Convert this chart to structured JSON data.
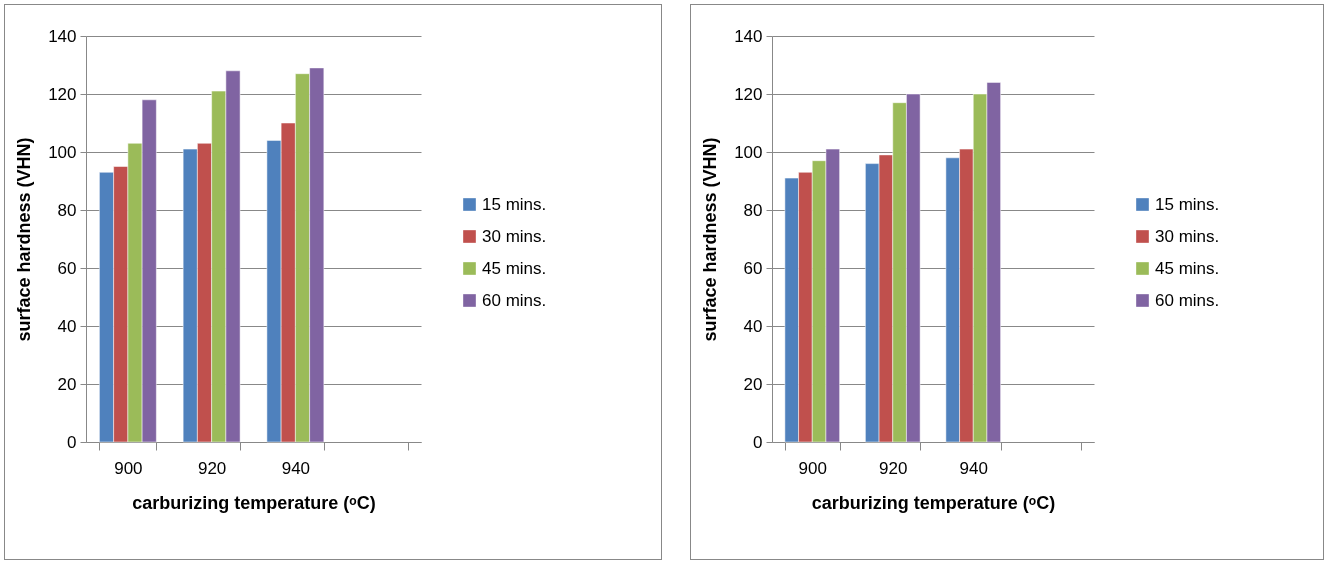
{
  "chart_data": [
    {
      "type": "bar",
      "xlabel": "carburizing temperature (ᵒC)",
      "ylabel": "surface hardness (VHN)",
      "categories": [
        "900",
        "920",
        "940",
        null
      ],
      "ylim": [
        0,
        140
      ],
      "yticks": [
        0,
        20,
        40,
        60,
        80,
        100,
        120,
        140
      ],
      "grid": "y",
      "legend": "right",
      "series": [
        {
          "name": "15 mins.",
          "color": "#4f81bd",
          "values": [
            93,
            101,
            104,
            null
          ]
        },
        {
          "name": "30 mins.",
          "color": "#c0504d",
          "values": [
            95,
            103,
            110,
            null
          ]
        },
        {
          "name": "45 mins.",
          "color": "#9bbb59",
          "values": [
            103,
            121,
            127,
            null
          ]
        },
        {
          "name": "60 mins.",
          "color": "#8064a2",
          "values": [
            118,
            128,
            129,
            null
          ]
        }
      ]
    },
    {
      "type": "bar",
      "xlabel": "carburizing temperature (ᵒC)",
      "ylabel": "surface hardness (VHN)",
      "categories": [
        "900",
        "920",
        "940",
        null
      ],
      "ylim": [
        0,
        140
      ],
      "yticks": [
        0,
        20,
        40,
        60,
        80,
        100,
        120,
        140
      ],
      "grid": "y",
      "legend": "right",
      "series": [
        {
          "name": "15 mins.",
          "color": "#4f81bd",
          "values": [
            91,
            96,
            98,
            null
          ]
        },
        {
          "name": "30 mins.",
          "color": "#c0504d",
          "values": [
            93,
            99,
            101,
            null
          ]
        },
        {
          "name": "45 mins.",
          "color": "#9bbb59",
          "values": [
            97,
            117,
            120,
            null
          ]
        },
        {
          "name": "60 mins.",
          "color": "#8064a2",
          "values": [
            101,
            120,
            124,
            null
          ]
        }
      ]
    }
  ]
}
